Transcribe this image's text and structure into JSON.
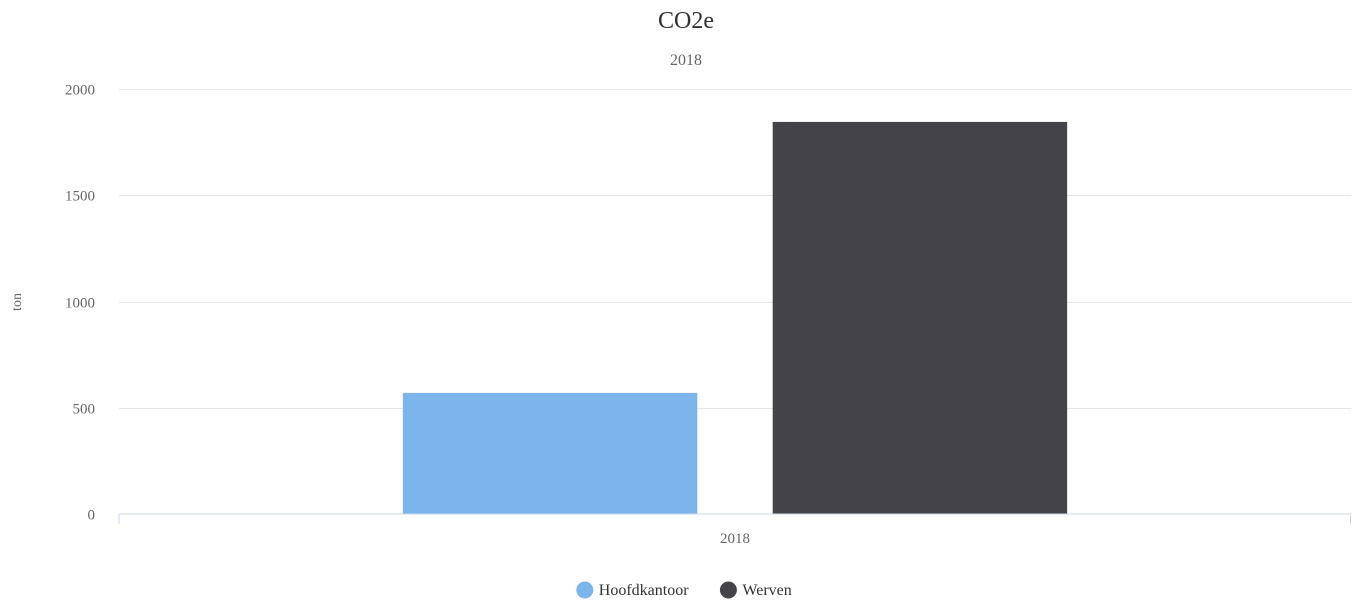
{
  "chart_data": {
    "type": "bar",
    "title": "CO2e",
    "subtitle": "2018",
    "ylabel": "ton",
    "xlabel": "",
    "categories": [
      "2018"
    ],
    "ylim": [
      0,
      2000
    ],
    "yticks": [
      0,
      500,
      1000,
      1500,
      2000
    ],
    "grid": true,
    "legend_position": "bottom-center",
    "series": [
      {
        "name": "Hoofdkantoor",
        "values": [
          570
        ],
        "color": "#7cb5ec"
      },
      {
        "name": "Werven",
        "values": [
          1845
        ],
        "color": "#434348"
      }
    ]
  }
}
